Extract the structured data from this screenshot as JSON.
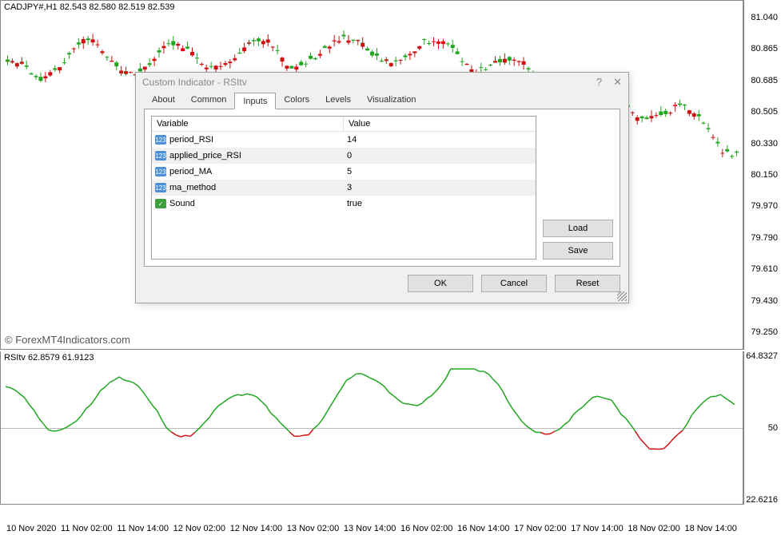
{
  "chart": {
    "header": "CADJPY#,H1  82.543 82.580 82.519 82.539",
    "watermark": "© ForexMT4Indicators.com",
    "price_ticks": [
      {
        "label": "81.040",
        "pos": 5
      },
      {
        "label": "80.865",
        "pos": 14
      },
      {
        "label": "80.685",
        "pos": 23
      },
      {
        "label": "80.505",
        "pos": 32
      },
      {
        "label": "80.330",
        "pos": 41
      },
      {
        "label": "80.150",
        "pos": 50
      },
      {
        "label": "79.970",
        "pos": 59
      },
      {
        "label": "79.790",
        "pos": 68
      },
      {
        "label": "79.610",
        "pos": 77
      },
      {
        "label": "79.430",
        "pos": 86
      },
      {
        "label": "79.250",
        "pos": 95
      }
    ],
    "candles": {
      "up_color": "#1fa61f",
      "down_color": "#d01010",
      "width": 5
    }
  },
  "indicator": {
    "header": "RSItv 62.8579 61.9123",
    "ticks": [
      {
        "label": "64.8327",
        "pos": 3
      },
      {
        "label": "50",
        "pos": 50
      },
      {
        "label": "22.6216",
        "pos": 97
      }
    ],
    "colors": {
      "up": "#1fa61f",
      "down": "#d01010",
      "flat": "#ffb000",
      "mid": "#999"
    }
  },
  "timeline": [
    "10 Nov 2020",
    "11 Nov 02:00",
    "11 Nov 14:00",
    "12 Nov 02:00",
    "12 Nov 14:00",
    "13 Nov 02:00",
    "13 Nov 14:00",
    "16 Nov 02:00",
    "16 Nov 14:00",
    "17 Nov 02:00",
    "17 Nov 14:00",
    "18 Nov 02:00",
    "18 Nov 14:00"
  ],
  "dialog": {
    "title": "Custom Indicator - RSItv",
    "tabs": [
      "About",
      "Common",
      "Inputs",
      "Colors",
      "Levels",
      "Visualization"
    ],
    "active_tab": "Inputs",
    "headers": {
      "var": "Variable",
      "val": "Value"
    },
    "rows": [
      {
        "icon": "num",
        "name": "period_RSI",
        "value": "14",
        "alt": false
      },
      {
        "icon": "num",
        "name": "applied_price_RSI",
        "value": "0",
        "alt": true
      },
      {
        "icon": "num",
        "name": "period_MA",
        "value": "5",
        "alt": false
      },
      {
        "icon": "num",
        "name": "ma_method",
        "value": "3",
        "alt": true
      },
      {
        "icon": "bool",
        "name": "Sound",
        "value": "true",
        "alt": false
      }
    ],
    "buttons": {
      "load": "Load",
      "save": "Save",
      "ok": "OK",
      "cancel": "Cancel",
      "reset": "Reset"
    },
    "icon_text": {
      "num": "123",
      "bool": "✓"
    }
  }
}
